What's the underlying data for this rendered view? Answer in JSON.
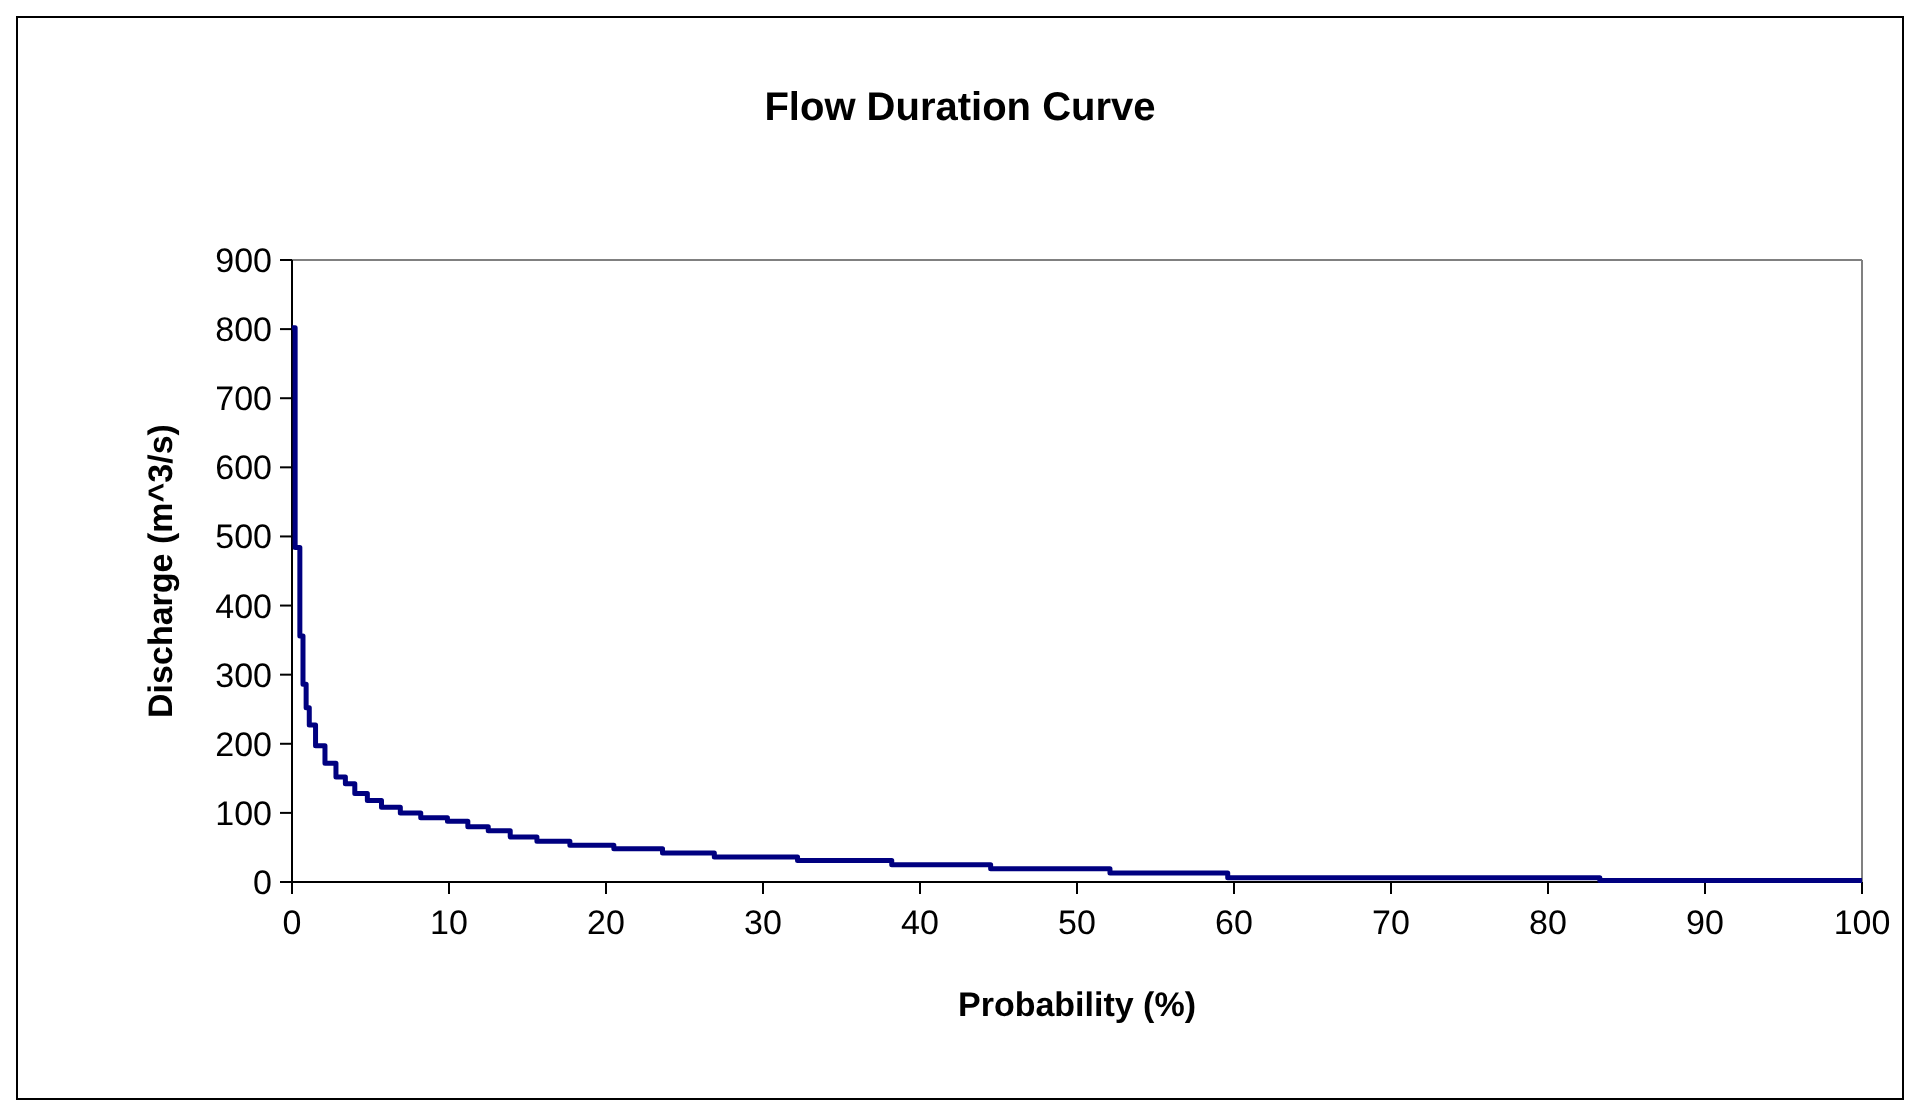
{
  "chart_data": {
    "type": "step",
    "title": "Flow Duration Curve",
    "xlabel": "Probability (%)",
    "ylabel": "Discharge (m^3/s)",
    "x": [
      0,
      0.2,
      0.5,
      0.7,
      0.9,
      1.1,
      1.5,
      2.1,
      2.8,
      3.4,
      4.0,
      4.8,
      5.7,
      6.9,
      8.2,
      9.9,
      11.2,
      12.5,
      13.9,
      15.6,
      17.7,
      20.5,
      23.6,
      26.9,
      32.2,
      38.2,
      44.5,
      52.1,
      59.6,
      83.3,
      100
    ],
    "series": [
      {
        "color": "#000080",
        "values": [
          802,
          484,
          356,
          286,
          252,
          227,
          197,
          172,
          152,
          142,
          128,
          118,
          108,
          100,
          93,
          88,
          80,
          74,
          65,
          59,
          53,
          48,
          42,
          36,
          31,
          25,
          19,
          13,
          6,
          2,
          2
        ]
      }
    ],
    "xlim": [
      0,
      100
    ],
    "ylim": [
      0,
      900
    ],
    "xticks": [
      0,
      10,
      20,
      30,
      40,
      50,
      60,
      70,
      80,
      90,
      100
    ],
    "yticks": [
      0,
      100,
      200,
      300,
      400,
      500,
      600,
      700,
      800,
      900
    ],
    "grid": false,
    "marker": "none",
    "line_style": "solid"
  }
}
